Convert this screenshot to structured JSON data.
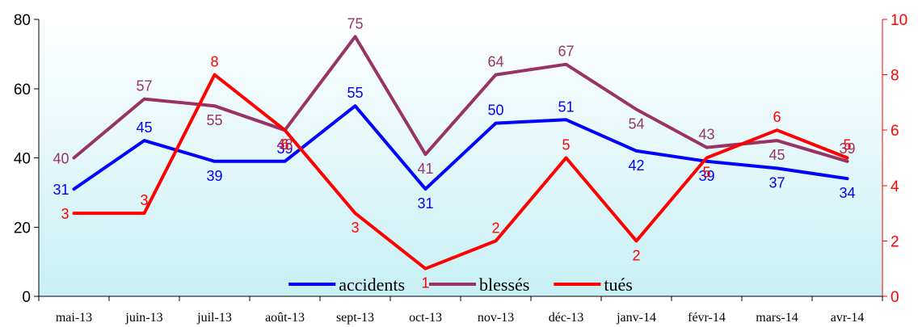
{
  "chart_data": {
    "type": "line",
    "categories": [
      "mai-13",
      "juin-13",
      "juil-13",
      "août-13",
      "sept-13",
      "oct-13",
      "nov-13",
      "déc-13",
      "janv-14",
      "févr-14",
      "mars-14",
      "avr-14"
    ],
    "y_left": {
      "ylim": [
        0,
        80
      ],
      "ticks": [
        "0",
        "20",
        "40",
        "60",
        "80"
      ]
    },
    "y_right": {
      "ylim": [
        0,
        10
      ],
      "ticks": [
        "0",
        "2",
        "4",
        "6",
        "8",
        "10"
      ],
      "color": "#ff0000"
    },
    "background_gradient": [
      "#ffffff",
      "#c8f0f4"
    ],
    "legend_position": "bottom-center",
    "series": [
      {
        "name": "accidents",
        "axis": "left",
        "color": "#0000ff",
        "values": [
          31,
          45,
          39,
          39,
          55,
          31,
          50,
          51,
          42,
          39,
          37,
          34
        ],
        "labels": [
          "31",
          "45",
          "39",
          "39",
          "55",
          "31",
          "50",
          "51",
          "42",
          "39",
          "37",
          "34"
        ]
      },
      {
        "name": "blessés",
        "axis": "left",
        "color": "#993366",
        "values": [
          40,
          57,
          55,
          48,
          75,
          41,
          64,
          67,
          54,
          43,
          45,
          39
        ],
        "labels": [
          "40",
          "57",
          "55",
          "48",
          "75",
          "41",
          "64",
          "67",
          "54",
          "43",
          "45",
          "39"
        ]
      },
      {
        "name": "tués",
        "axis": "right",
        "color": "#ff0000",
        "values": [
          3,
          3,
          8,
          6,
          3,
          1,
          2,
          5,
          2,
          5,
          6,
          5
        ],
        "labels": [
          "3",
          "3",
          "8",
          "6",
          "3",
          "1",
          "2",
          "5",
          "2",
          "5",
          "6",
          "5"
        ]
      }
    ]
  }
}
